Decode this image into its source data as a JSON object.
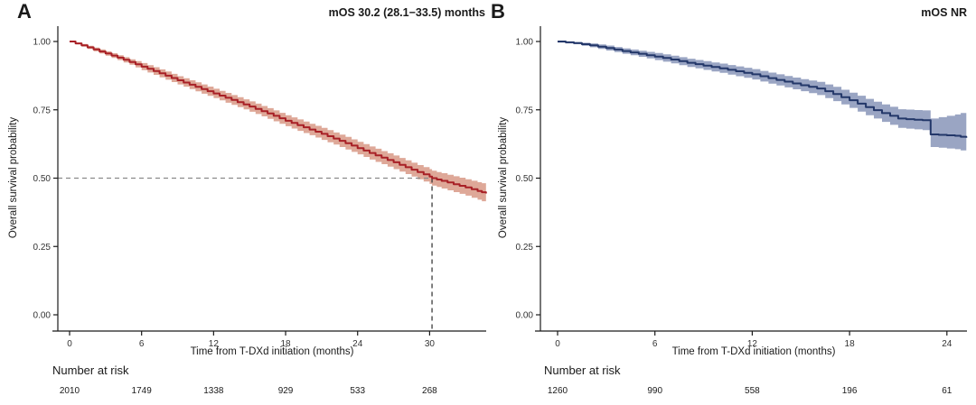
{
  "chart_data": [
    {
      "type": "line",
      "subtype": "kaplan-meier-step",
      "panel_label": "A",
      "title": "mOS 30.2 (28.1−33.5) months",
      "xlabel": "Time from T-DXd initiation (months)",
      "ylabel": "Overall survival probability",
      "xticks": [
        0,
        6,
        12,
        18,
        24,
        30
      ],
      "yticks": [
        0.0,
        0.25,
        0.5,
        0.75,
        1.0
      ],
      "xlim": [
        0,
        34.7
      ],
      "ylim": [
        0,
        1
      ],
      "grid": false,
      "legend": "none",
      "line_color": "#a82026",
      "band_color": "#dea898",
      "median_line": {
        "x": 30.2,
        "y": 0.5
      },
      "series": [
        {
          "name": "Overall survival",
          "points_format": [
            "months",
            "survival",
            "ci_lower",
            "ci_upper"
          ],
          "points": [
            [
              0,
              1.0,
              0.997,
              1.0
            ],
            [
              1,
              0.986,
              0.981,
              0.991
            ],
            [
              2,
              0.971,
              0.964,
              0.978
            ],
            [
              3,
              0.956,
              0.948,
              0.964
            ],
            [
              4,
              0.941,
              0.932,
              0.95
            ],
            [
              5,
              0.925,
              0.915,
              0.935
            ],
            [
              6,
              0.908,
              0.895,
              0.921
            ],
            [
              7,
              0.892,
              0.878,
              0.906
            ],
            [
              8,
              0.875,
              0.86,
              0.89
            ],
            [
              9,
              0.858,
              0.843,
              0.873
            ],
            [
              10,
              0.842,
              0.826,
              0.858
            ],
            [
              11,
              0.826,
              0.809,
              0.843
            ],
            [
              12,
              0.81,
              0.793,
              0.827
            ],
            [
              13,
              0.794,
              0.776,
              0.812
            ],
            [
              14,
              0.778,
              0.76,
              0.796
            ],
            [
              15,
              0.762,
              0.743,
              0.781
            ],
            [
              16,
              0.745,
              0.726,
              0.764
            ],
            [
              17,
              0.728,
              0.708,
              0.748
            ],
            [
              18,
              0.71,
              0.69,
              0.73
            ],
            [
              19,
              0.694,
              0.673,
              0.715
            ],
            [
              20,
              0.678,
              0.657,
              0.699
            ],
            [
              21,
              0.662,
              0.64,
              0.684
            ],
            [
              22,
              0.645,
              0.623,
              0.667
            ],
            [
              23,
              0.628,
              0.605,
              0.651
            ],
            [
              24,
              0.61,
              0.587,
              0.633
            ],
            [
              25,
              0.592,
              0.568,
              0.616
            ],
            [
              26,
              0.575,
              0.551,
              0.599
            ],
            [
              27,
              0.558,
              0.533,
              0.583
            ],
            [
              28,
              0.54,
              0.515,
              0.565
            ],
            [
              29,
              0.522,
              0.496,
              0.548
            ],
            [
              30,
              0.506,
              0.479,
              0.533
            ],
            [
              30.2,
              0.5,
              0.473,
              0.527
            ],
            [
              31,
              0.49,
              0.462,
              0.518
            ],
            [
              32,
              0.478,
              0.449,
              0.507
            ],
            [
              33,
              0.466,
              0.436,
              0.496
            ],
            [
              34,
              0.453,
              0.421,
              0.485
            ],
            [
              34.7,
              0.444,
              0.41,
              0.478
            ]
          ]
        }
      ],
      "number_at_risk": {
        "label": "Number at risk",
        "times": [
          0,
          6,
          12,
          18,
          24,
          30
        ],
        "counts": [
          2010,
          1749,
          1338,
          929,
          533,
          268
        ]
      }
    },
    {
      "type": "line",
      "subtype": "kaplan-meier-step",
      "panel_label": "B",
      "title": "mOS NR",
      "xlabel": "Time from T-DXd initiation (months)",
      "ylabel": "Overall survival probability",
      "xticks": [
        0,
        6,
        12,
        18,
        24
      ],
      "yticks": [
        0.0,
        0.25,
        0.5,
        0.75,
        1.0
      ],
      "xlim": [
        0,
        25.2
      ],
      "ylim": [
        0,
        1
      ],
      "grid": false,
      "legend": "none",
      "line_color": "#233769",
      "band_color": "#9aa5c3",
      "median_line": null,
      "series": [
        {
          "name": "Overall survival",
          "points_format": [
            "months",
            "survival",
            "ci_lower",
            "ci_upper"
          ],
          "points": [
            [
              0,
              1.0,
              0.996,
              1.0
            ],
            [
              1,
              0.994,
              0.99,
              0.998
            ],
            [
              2,
              0.986,
              0.979,
              0.993
            ],
            [
              3,
              0.976,
              0.967,
              0.985
            ],
            [
              4,
              0.965,
              0.955,
              0.975
            ],
            [
              5,
              0.955,
              0.944,
              0.966
            ],
            [
              6,
              0.945,
              0.932,
              0.958
            ],
            [
              7,
              0.934,
              0.92,
              0.948
            ],
            [
              8,
              0.922,
              0.907,
              0.937
            ],
            [
              9,
              0.912,
              0.896,
              0.928
            ],
            [
              10,
              0.902,
              0.885,
              0.919
            ],
            [
              11,
              0.891,
              0.873,
              0.909
            ],
            [
              12,
              0.88,
              0.861,
              0.899
            ],
            [
              13,
              0.866,
              0.846,
              0.886
            ],
            [
              14,
              0.853,
              0.832,
              0.874
            ],
            [
              15,
              0.84,
              0.818,
              0.862
            ],
            [
              16,
              0.828,
              0.804,
              0.852
            ],
            [
              17,
              0.808,
              0.782,
              0.834
            ],
            [
              18,
              0.785,
              0.757,
              0.813
            ],
            [
              19,
              0.76,
              0.73,
              0.79
            ],
            [
              20,
              0.738,
              0.706,
              0.77
            ],
            [
              21,
              0.718,
              0.684,
              0.752
            ],
            [
              22.5,
              0.712,
              0.676,
              0.748
            ],
            [
              23,
              0.66,
              0.614,
              0.718
            ],
            [
              24.5,
              0.655,
              0.606,
              0.733
            ],
            [
              25.2,
              0.648,
              0.597,
              0.744
            ]
          ]
        }
      ],
      "number_at_risk": {
        "label": "Number at risk",
        "times": [
          0,
          6,
          12,
          18,
          24
        ],
        "counts": [
          1260,
          990,
          558,
          196,
          61
        ]
      }
    }
  ],
  "style": {
    "axis_color": "#1a1a1a",
    "tick_label_color": "#333333",
    "dashed_h_color": "#8a8a8a",
    "dashed_v_color": "#3a3a3a",
    "background": "#ffffff"
  }
}
